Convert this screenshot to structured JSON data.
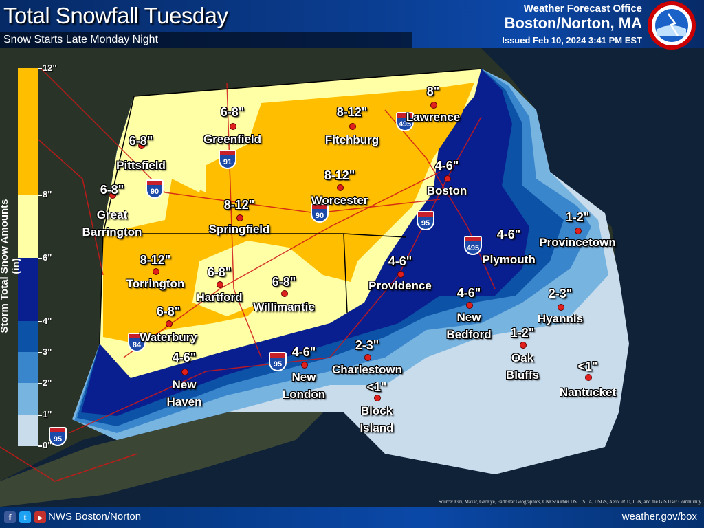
{
  "header": {
    "title": "Total Snowfall Tuesday",
    "subtitle": "Snow Starts Late Monday Night",
    "office_label": "Weather Forecast Office",
    "office": "Boston/Norton, MA",
    "issued": "Issued Feb 10, 2024 3:41 PM EST",
    "logo_text": "NATIONAL WEATHER SERVICE"
  },
  "legend": {
    "title": "Storm Total Snow Amounts (in)",
    "bins": [
      {
        "from": 8,
        "to": 12,
        "color": "#ffbf00"
      },
      {
        "from": 6,
        "to": 8,
        "color": "#ffffa6"
      },
      {
        "from": 4,
        "to": 6,
        "color": "#0a1f8f"
      },
      {
        "from": 3,
        "to": 4,
        "color": "#0c52a6"
      },
      {
        "from": 2,
        "to": 3,
        "color": "#3a86cc"
      },
      {
        "from": 1,
        "to": 2,
        "color": "#78b4e0"
      },
      {
        "from": 0,
        "to": 1,
        "color": "#c8dcec"
      }
    ],
    "ticks": [
      "12\"",
      "8\"",
      "6\"",
      "4\"",
      "3\"",
      "2\"",
      "1\"",
      "0\""
    ]
  },
  "cities": [
    {
      "name": "Pittsfield",
      "amount": "6-8\""
    },
    {
      "name": "Greenfield",
      "amount": "6-8\""
    },
    {
      "name": "Fitchburg",
      "amount": "8-12\""
    },
    {
      "name": "Lawrence",
      "amount": "8\""
    },
    {
      "name": "Great Barrington",
      "amount": "6-8\""
    },
    {
      "name": "Springfield",
      "amount": "8-12\""
    },
    {
      "name": "Worcester",
      "amount": "8-12\""
    },
    {
      "name": "Boston",
      "amount": "4-6\""
    },
    {
      "name": "Provincetown",
      "amount": "1-2\""
    },
    {
      "name": "Plymouth",
      "amount": "4-6\""
    },
    {
      "name": "Providence",
      "amount": "4-6\""
    },
    {
      "name": "Torrington",
      "amount": "8-12\""
    },
    {
      "name": "Hartford",
      "amount": "6-8\""
    },
    {
      "name": "Willimantic",
      "amount": "6-8\""
    },
    {
      "name": "New Bedford",
      "amount": "4-6\""
    },
    {
      "name": "Hyannis",
      "amount": "2-3\""
    },
    {
      "name": "Waterbury",
      "amount": "6-8\""
    },
    {
      "name": "Oak Bluffs",
      "amount": "1-2\""
    },
    {
      "name": "Charlestown",
      "amount": "2-3\""
    },
    {
      "name": "New Haven",
      "amount": "4-6\""
    },
    {
      "name": "New London",
      "amount": "4-6\""
    },
    {
      "name": "Block Island",
      "amount": "<1\""
    },
    {
      "name": "Nantucket",
      "amount": "<1\""
    }
  ],
  "interstates": [
    "495",
    "91",
    "90",
    "90",
    "95",
    "495",
    "95",
    "84",
    "95"
  ],
  "source": "Source: Esri, Maxar, GeoEye, Earthstar Geographics, CNES/Airbus DS, USDA, USGS, AeroGRID, IGN, and the GIS User Community",
  "footer": {
    "social": [
      "facebook-icon",
      "twitter-icon",
      "youtube-icon"
    ],
    "handle": "NWS Boston/Norton",
    "url": "weather.gov/box"
  }
}
